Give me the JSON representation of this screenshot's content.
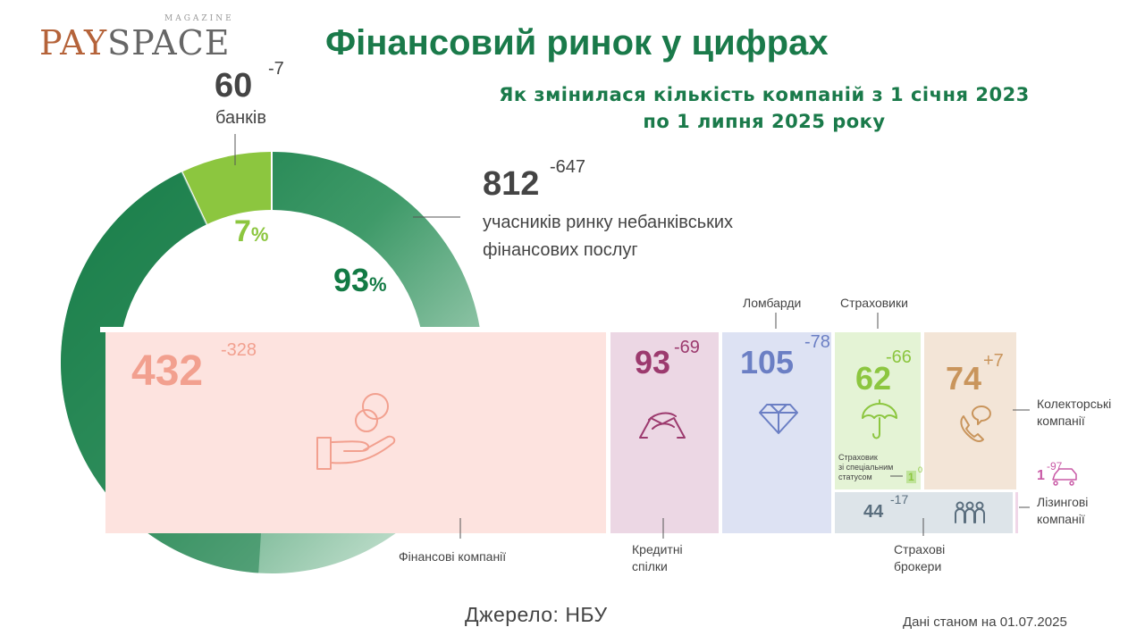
{
  "logo": {
    "magazine": "MAGAZINE",
    "pay": "PAY",
    "space": "SPACE"
  },
  "title": "Фінансовий ринок у цифрах",
  "subtitle_line1": "Як змінилася кількість компаній з 1 січня 2023",
  "subtitle_line2": "по 1 липня 2025 року",
  "colors": {
    "banks": "#8cc63f",
    "nbfs": "#127a44",
    "finance": "#f2a08f",
    "credit": "#9c3a6e",
    "pawn": "#6b7fc4",
    "insurers": "#8cc63f",
    "collectors": "#c9955c",
    "brokers": "#5a6e7e",
    "leasing": "#c95aa6"
  },
  "chart_data": [
    {
      "type": "pie",
      "categories": [
        "банків",
        "учасників ринку небанківських фінансових послуг"
      ],
      "values": [
        7,
        93
      ],
      "counts": [
        60,
        812
      ],
      "changes": [
        -7,
        -647
      ],
      "labels": {
        "banks_num": "60",
        "banks_delta": "-7",
        "banks_label": "банків",
        "nbfs_num": "812",
        "nbfs_delta": "-647",
        "nbfs_label_1": "учасників ринку небанківських",
        "nbfs_label_2": "фінансових послуг",
        "pct_banks": "7",
        "pct_nbfs": "93",
        "pct_sign": "%"
      }
    },
    {
      "type": "table",
      "categories": [
        "Фінансові компанії",
        "Кредитні спілки",
        "Ломбарди",
        "Страховики",
        "Колекторські компанії",
        "Страхові брокери",
        "Лізингові компанії",
        "Страховик зі спеціальним статусом"
      ],
      "values": [
        432,
        93,
        105,
        62,
        74,
        44,
        1,
        1
      ],
      "changes": [
        -328,
        -69,
        -78,
        -66,
        7,
        -17,
        -97,
        0
      ],
      "labels": {
        "finance_num": "432",
        "finance_delta": "-328",
        "finance_cap": "Фінансові компанії",
        "credit_num": "93",
        "credit_delta": "-69",
        "credit_cap_1": "Кредитні",
        "credit_cap_2": "спілки",
        "pawn_num": "105",
        "pawn_delta": "-78",
        "pawn_cap": "Ломбарди",
        "ins_num": "62",
        "ins_delta": "-66",
        "ins_cap": "Страховики",
        "coll_num": "74",
        "coll_delta": "+7",
        "coll_cap_1": "Колекторські",
        "coll_cap_2": "компанії",
        "brok_num": "44",
        "brok_delta": "-17",
        "brok_cap_1": "Страхові",
        "brok_cap_2": "брокери",
        "leas_num": "1",
        "leas_delta": "-97",
        "leas_cap_1": "Лізингові",
        "leas_cap_2": "компанії",
        "spec_num": "1",
        "spec_delta": "0",
        "spec_cap_1": "Страховик",
        "spec_cap_2": "зі спеціальним",
        "spec_cap_3": "статусом"
      }
    }
  ],
  "source": "Джерело: НБУ",
  "as_of": "Дані станом на 01.07.2025"
}
